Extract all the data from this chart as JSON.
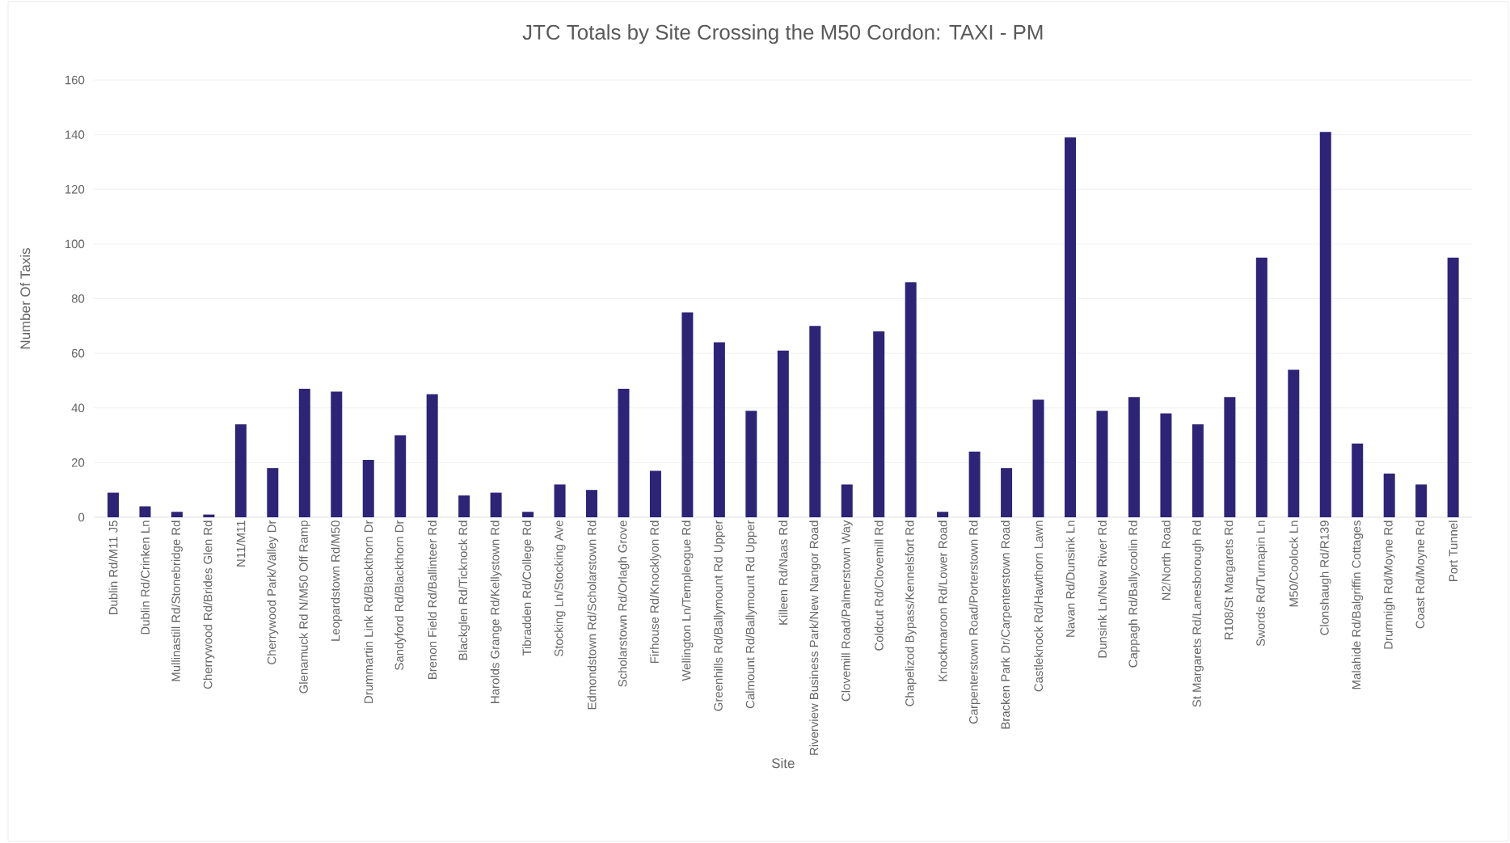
{
  "chart_data": {
    "type": "bar",
    "title": "JTC Totals by Site Crossing the M50 Cordon: TAXI - PM",
    "xlabel": "Site",
    "ylabel": "Number Of Taxis",
    "categories": [
      "Dublin Rd/M11 J5",
      "Dublin Rd/Crinken Ln",
      "Mullinastill Rd/Stonebridge Rd",
      "Cherrywood Rd/Brides Glen Rd",
      "N11/M11",
      "Cherrywood Park/Valley Dr",
      "Glenamuck Rd N/M50 Off Ramp",
      "Leopardstown Rd/M50",
      "Drummartin Link Rd/Blackthorn Dr",
      "Sandyford Rd/Blackthorn Dr",
      "Brenon Field Rd/Ballinteer Rd",
      "Blackglen Rd/Ticknock Rd",
      "Harolds Grange Rd/Kellystown Rd",
      "Tibradden Rd/College Rd",
      "Stocking Ln/Stocking Ave",
      "Edmondstown Rd/Scholarstown Rd",
      "Scholarstown Rd/Orlagh Grove",
      "Firhouse Rd/Knocklyon Rd",
      "Wellington Ln/Templeogue Rd",
      "Greenhills Rd/Ballymount Rd Upper",
      "Calmount Rd/Ballymount Rd Upper",
      "Killeen Rd/Naas Rd",
      "Riverview Business Park/New Nangor Road",
      "Clovemill Road/Palmerstown Way",
      "Coldcut Rd/Clovemill Rd",
      "Chapelizod Bypass/Kennelsfort Rd",
      "Knockmaroon Rd/Lower Road",
      "Carpenterstown Road/Porterstown Rd",
      "Bracken Park Dr/Carpenterstown Road",
      "Castleknock Rd/Hawthorn Lawn",
      "Navan Rd/Dunsink Ln",
      "Dunsink Ln/New River Rd",
      "Cappagh Rd/Ballycoolin Rd",
      "N2/North Road",
      "St Margarets Rd/Lanesborough Rd",
      "R108/St Margarets Rd",
      "Swords Rd/Turnapin Ln",
      "M50/Coolock Ln",
      "Clonshaugh Rd/R139",
      "Malahide Rd/Balgriffin Cottages",
      "Drumnigh Rd/Moyne Rd",
      "Coast Rd/Moyne Rd",
      "Port Tunnel"
    ],
    "values": [
      9,
      4,
      2,
      1,
      34,
      18,
      47,
      46,
      21,
      30,
      45,
      8,
      9,
      2,
      12,
      10,
      47,
      17,
      75,
      64,
      39,
      61,
      70,
      12,
      68,
      86,
      2,
      24,
      18,
      43,
      139,
      39,
      44,
      38,
      34,
      44,
      95,
      54,
      141,
      27,
      16,
      12,
      95
    ],
    "color": "#2e2477",
    "ylim": [
      0,
      160
    ],
    "yticks": [
      0,
      20,
      40,
      60,
      80,
      100,
      120,
      140,
      160
    ],
    "grid": "y"
  }
}
